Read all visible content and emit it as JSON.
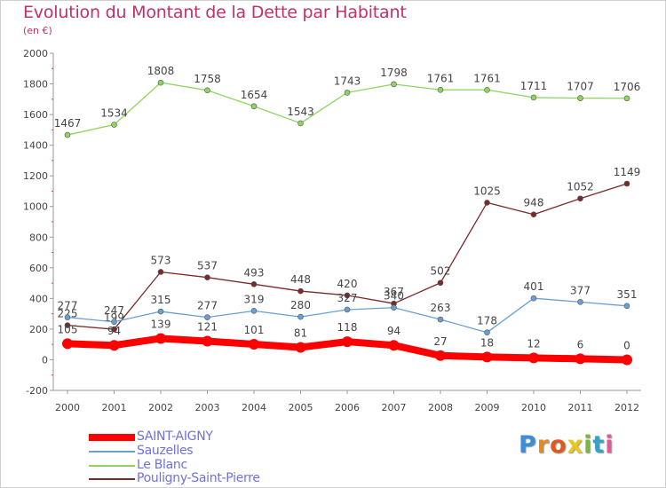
{
  "chart_data": {
    "type": "line",
    "title": "Evolution du Montant de la Dette par Habitant",
    "subtitle": "(en €)",
    "x": [
      "2000",
      "2001",
      "2002",
      "2003",
      "2004",
      "2005",
      "2006",
      "2007",
      "2008",
      "2009",
      "2010",
      "2011",
      "2012"
    ],
    "ylim": [
      -200,
      2000
    ],
    "yticks": [
      -200,
      0,
      200,
      400,
      600,
      800,
      1000,
      1200,
      1400,
      1600,
      1800,
      2000
    ],
    "ytick_labels": [
      "-200",
      "0",
      "200",
      "400",
      "600",
      "800",
      "1000",
      "1200",
      "1400",
      "1600",
      "1800",
      "2000"
    ],
    "grid": false,
    "legend_position": "bottom-left",
    "series": [
      {
        "name": "SAINT-AIGNY",
        "color": "#ff0000",
        "values": [
          105,
          94,
          139,
          121,
          101,
          81,
          118,
          94,
          27,
          18,
          12,
          6,
          0
        ]
      },
      {
        "name": "Sauzelles",
        "color": "#6a9fd4",
        "values": [
          277,
          247,
          315,
          277,
          319,
          280,
          327,
          340,
          263,
          178,
          401,
          377,
          351
        ]
      },
      {
        "name": "Le Blanc",
        "color": "#8fd460",
        "values": [
          1467,
          1534,
          1808,
          1758,
          1654,
          1543,
          1743,
          1798,
          1761,
          1761,
          1711,
          1707,
          1706
        ]
      },
      {
        "name": "Pouligny-Saint-Pierre",
        "color": "#7a2a2a",
        "values": [
          225,
          199,
          573,
          537,
          493,
          448,
          420,
          367,
          502,
          1025,
          948,
          1052,
          1149
        ]
      }
    ]
  },
  "logo": {
    "letters": [
      "P",
      "r",
      "o",
      "x",
      "i",
      "t",
      "i"
    ],
    "colors": [
      "#3a8fd8",
      "#e68a1e",
      "#e05a1e",
      "#e8c81e",
      "#7ab83a",
      "#3aa0c8",
      "#e05a9a"
    ]
  }
}
